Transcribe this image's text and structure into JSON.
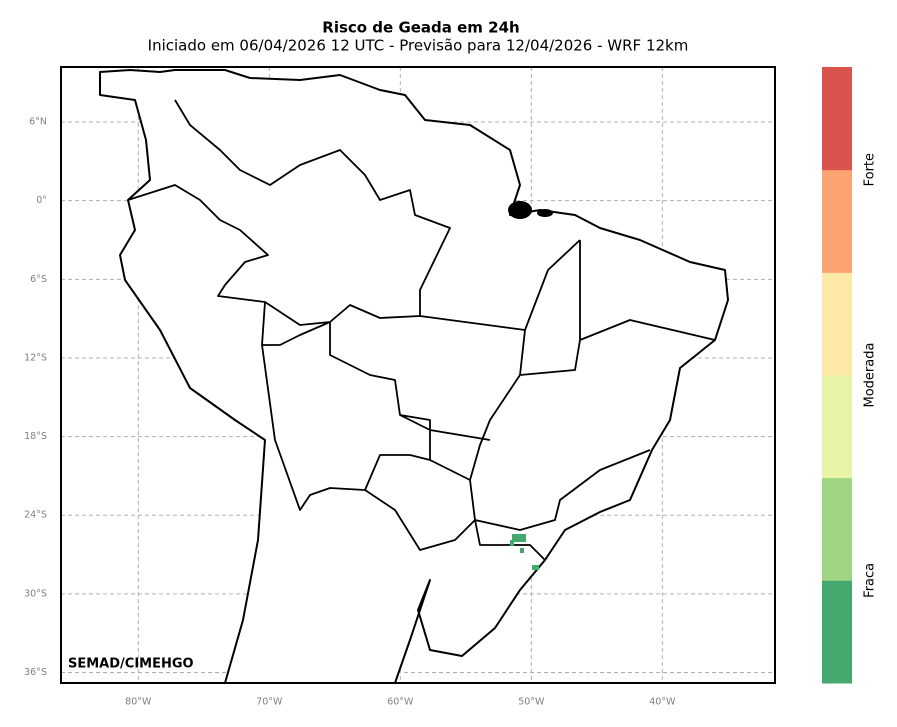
{
  "chart_data": {
    "type": "map",
    "title": "Risco de Geada em 24h",
    "subtitle": "Iniciado em 06/04/2026 12 UTC - Previsão para 12/04/2026 - WRF 12km",
    "credit": "SEMAD/CIMEHGO",
    "xlim": [
      -85.9,
      -31.4
    ],
    "ylim": [
      -36.8,
      10.2
    ],
    "xticks": [
      {
        "value": -80,
        "label": "80°W"
      },
      {
        "value": -70,
        "label": "70°W"
      },
      {
        "value": -60,
        "label": "60°W"
      },
      {
        "value": -50,
        "label": "50°W"
      },
      {
        "value": -40,
        "label": "40°W"
      }
    ],
    "yticks": [
      {
        "value": 6,
        "label": "6°N"
      },
      {
        "value": 0,
        "label": "0°"
      },
      {
        "value": -6,
        "label": "6°S"
      },
      {
        "value": -12,
        "label": "12°S"
      },
      {
        "value": -18,
        "label": "18°S"
      },
      {
        "value": -24,
        "label": "24°S"
      },
      {
        "value": -30,
        "label": "30°S"
      },
      {
        "value": -36,
        "label": "36°S"
      }
    ],
    "grid": true,
    "colorbar": {
      "colors": [
        "#45a86f",
        "#9ed482",
        "#e6f4a8",
        "#fde8a6",
        "#fca372",
        "#d9534f"
      ],
      "labels": [
        "Fraca",
        "Moderada",
        "Forte"
      ]
    }
  }
}
